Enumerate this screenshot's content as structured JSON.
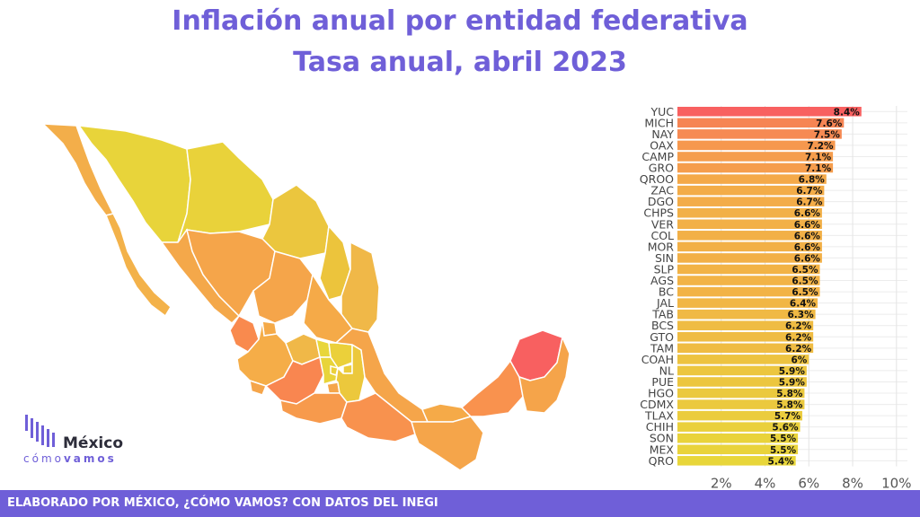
{
  "header": {
    "title": "Inflación anual por entidad federativa",
    "subtitle": "Tasa anual, abril 2023"
  },
  "logo": {
    "main": "México",
    "sub_light": "cómo",
    "sub_bold": "vamos"
  },
  "footer": {
    "text": "ELABORADO POR MÉXICO, ¿CÓMO VAMOS? CON DATOS DEL INEGI"
  },
  "chart_data": {
    "type": "bar",
    "orientation": "horizontal",
    "categories": [
      "YUC",
      "MICH",
      "NAY",
      "OAX",
      "CAMP",
      "GRO",
      "QROO",
      "ZAC",
      "DGO",
      "CHPS",
      "VER",
      "COL",
      "MOR",
      "SIN",
      "SLP",
      "AGS",
      "BC",
      "JAL",
      "TAB",
      "BCS",
      "GTO",
      "TAM",
      "COAH",
      "NL",
      "PUE",
      "HGO",
      "CDMX",
      "TLAX",
      "CHIH",
      "SON",
      "MEX",
      "QRO"
    ],
    "values": [
      8.4,
      7.6,
      7.5,
      7.2,
      7.1,
      7.1,
      6.8,
      6.7,
      6.7,
      6.6,
      6.6,
      6.6,
      6.6,
      6.6,
      6.5,
      6.5,
      6.5,
      6.4,
      6.3,
      6.2,
      6.2,
      6.2,
      6.0,
      5.9,
      5.9,
      5.8,
      5.8,
      5.7,
      5.6,
      5.5,
      5.5,
      5.4
    ],
    "data_labels": [
      "8.4%",
      "7.6%",
      "7.5%",
      "7.2%",
      "7.1%",
      "7.1%",
      "6.8%",
      "6.7%",
      "6.7%",
      "6.6%",
      "6.6%",
      "6.6%",
      "6.6%",
      "6.6%",
      "6.5%",
      "6.5%",
      "6.5%",
      "6.4%",
      "6.3%",
      "6.2%",
      "6.2%",
      "6.2%",
      "6%",
      "5.9%",
      "5.9%",
      "5.8%",
      "5.8%",
      "5.7%",
      "5.6%",
      "5.5%",
      "5.5%",
      "5.4%"
    ],
    "xlim": [
      0,
      10.5
    ],
    "xticks": [
      2,
      4,
      6,
      8,
      10
    ],
    "xtick_labels": [
      "2%",
      "4%",
      "6%",
      "8%",
      "10%"
    ],
    "grid": true,
    "color_scale": {
      "low": "#e8d63a",
      "mid": "#f5a64a",
      "high": "#f86060"
    }
  }
}
